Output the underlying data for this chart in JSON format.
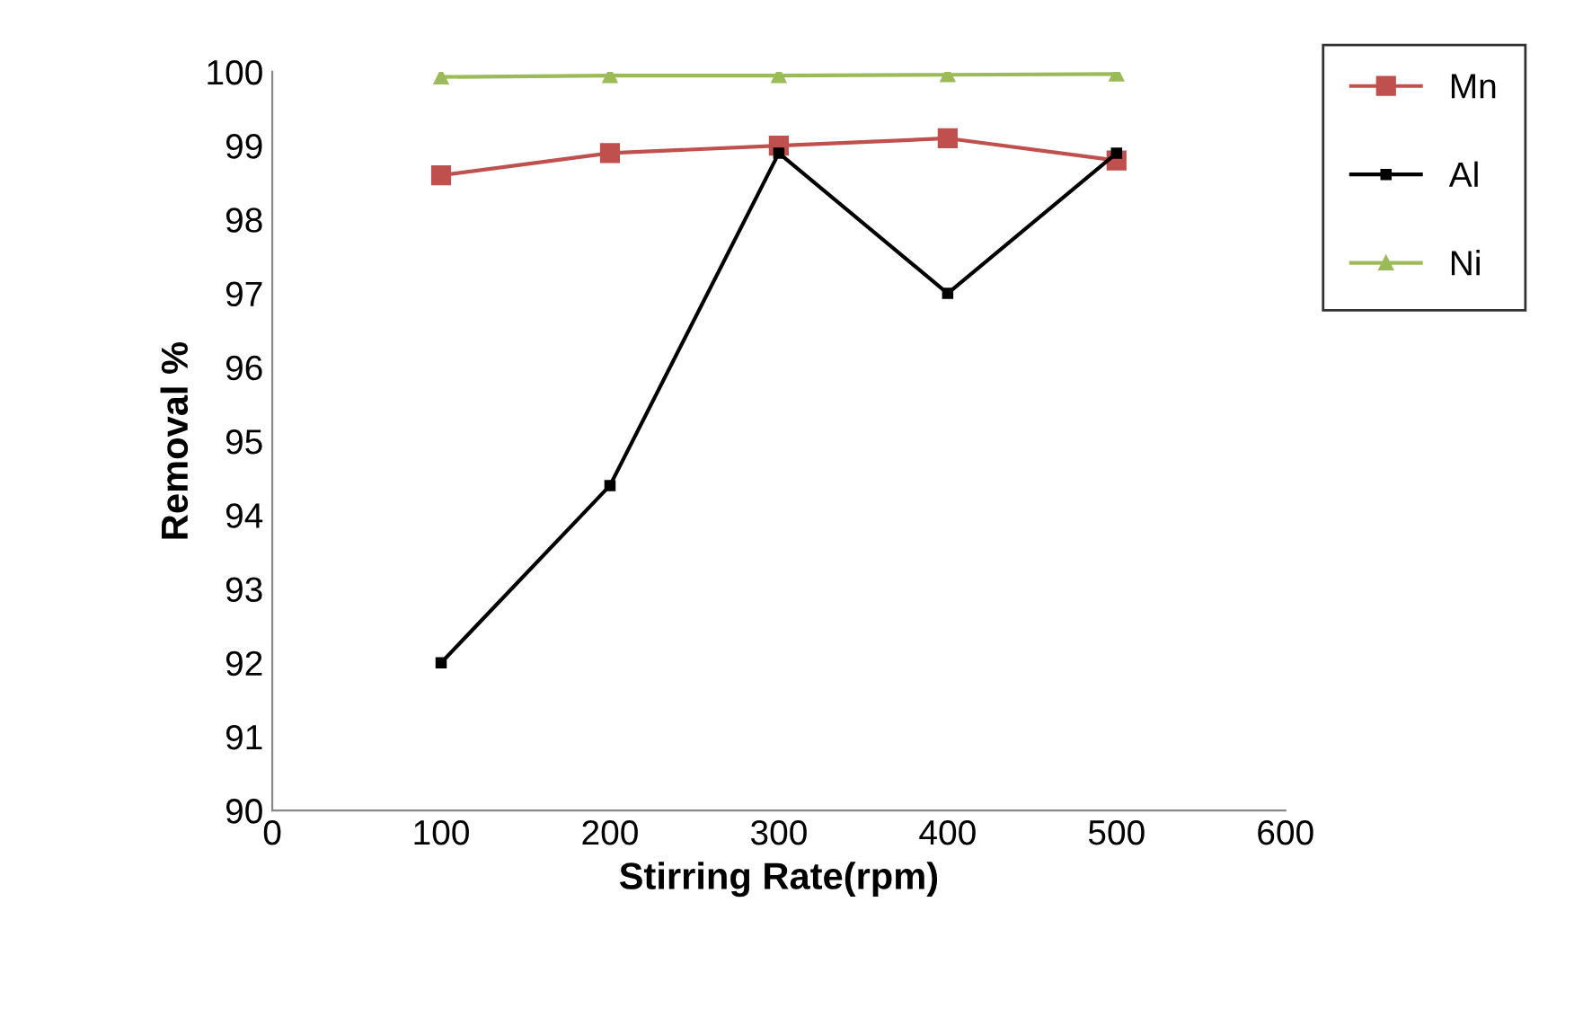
{
  "chart_data": {
    "type": "line",
    "xlabel": "Stirring Rate(rpm)",
    "ylabel": "Removal %",
    "x": [
      100,
      200,
      300,
      400,
      500
    ],
    "series": [
      {
        "name": "Mn",
        "color": "#c0504d",
        "marker": "square",
        "values": [
          98.6,
          98.9,
          99.0,
          99.1,
          98.8
        ]
      },
      {
        "name": "Al",
        "color": "#000000",
        "marker": "square",
        "values": [
          92.0,
          94.4,
          98.9,
          97.0,
          98.9
        ]
      },
      {
        "name": "Ni",
        "color": "#9bbb59",
        "marker": "triangle",
        "values": [
          99.93,
          99.95,
          99.95,
          99.96,
          99.97
        ]
      }
    ],
    "xlim": [
      0,
      600
    ],
    "xticks": [
      0,
      100,
      200,
      300,
      400,
      500,
      600
    ],
    "ylim": [
      90,
      100
    ],
    "yticks": [
      90,
      91,
      92,
      93,
      94,
      95,
      96,
      97,
      98,
      99,
      100
    ],
    "grid": false,
    "legend": "top right"
  }
}
